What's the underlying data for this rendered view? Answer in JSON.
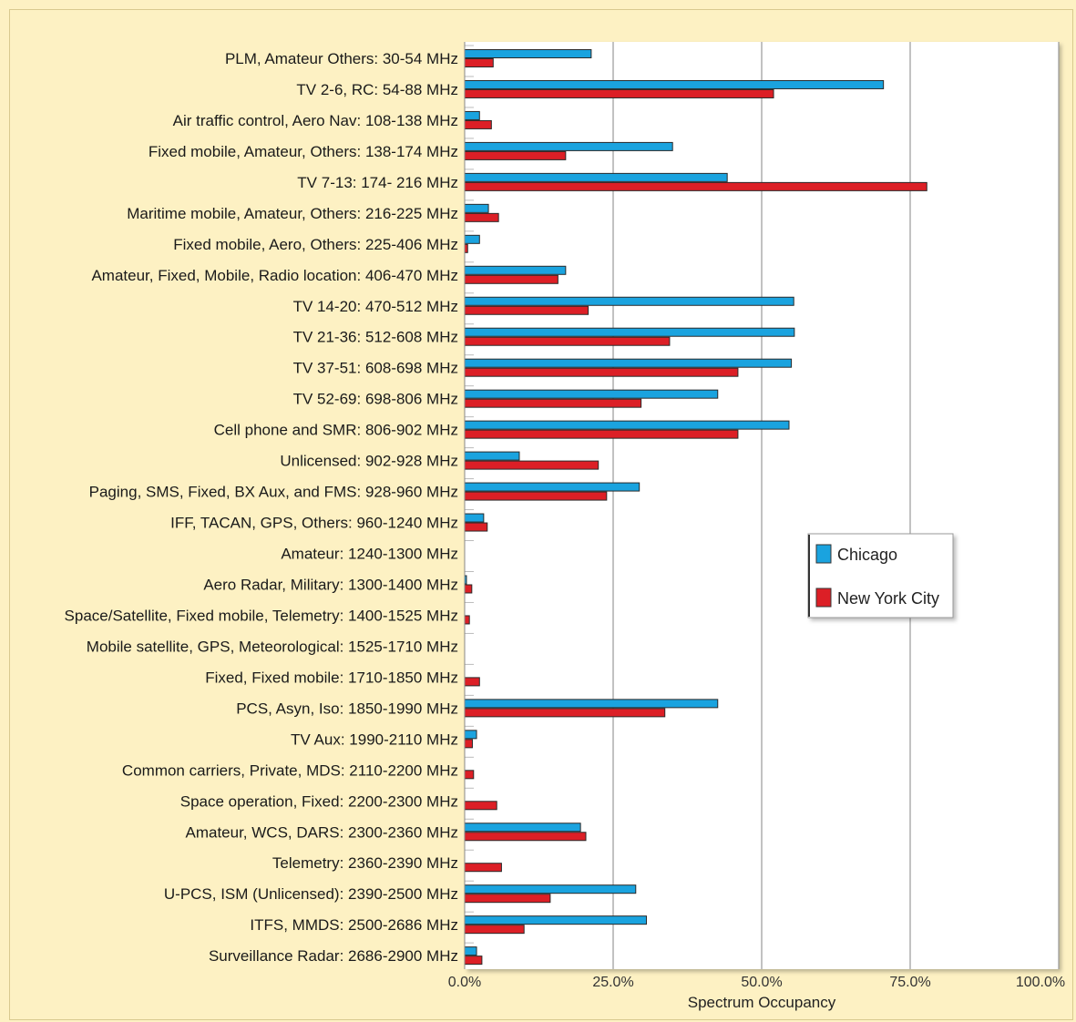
{
  "chart_data": {
    "type": "bar",
    "orientation": "horizontal",
    "categories": [
      "PLM, Amateur Others: 30-54 MHz",
      "TV 2-6, RC: 54-88 MHz",
      "Air traffic control, Aero Nav: 108-138 MHz",
      "Fixed mobile, Amateur, Others: 138-174 MHz",
      "TV 7-13: 174- 216 MHz",
      "Maritime mobile, Amateur, Others: 216-225 MHz",
      "Fixed mobile, Aero, Others: 225-406 MHz",
      "Amateur, Fixed, Mobile, Radio location: 406-470 MHz",
      "TV 14-20: 470-512 MHz",
      "TV 21-36: 512-608 MHz",
      "TV 37-51: 608-698 MHz",
      "TV 52-69: 698-806 MHz",
      "Cell phone and SMR: 806-902 MHz",
      "Unlicensed: 902-928 MHz",
      "Paging, SMS, Fixed, BX Aux, and FMS: 928-960 MHz",
      "IFF, TACAN, GPS, Others: 960-1240 MHz",
      "Amateur: 1240-1300 MHz",
      "Aero Radar, Military: 1300-1400 MHz",
      "Space/Satellite, Fixed mobile, Telemetry: 1400-1525 MHz",
      "Mobile satellite, GPS, Meteorological: 1525-1710 MHz",
      "Fixed, Fixed mobile: 1710-1850 MHz",
      "PCS, Asyn, Iso: 1850-1990 MHz",
      "TV Aux: 1990-2110 MHz",
      "Common carriers, Private, MDS: 2110-2200 MHz",
      "Space operation, Fixed: 2200-2300 MHz",
      "Amateur, WCS, DARS: 2300-2360 MHz",
      "Telemetry: 2360-2390 MHz",
      "U-PCS, ISM (Unlicensed): 2390-2500 MHz",
      "ITFS, MMDS: 2500-2686 MHz",
      "Surveillance Radar: 2686-2900 MHz"
    ],
    "series": [
      {
        "name": "Chicago",
        "color": "#1aa3df",
        "values": [
          21.3,
          70.5,
          2.5,
          35.0,
          44.2,
          4.0,
          2.5,
          17.0,
          55.4,
          55.5,
          55.0,
          42.6,
          54.6,
          9.2,
          29.4,
          3.2,
          0.0,
          0.3,
          0.0,
          0.0,
          0.0,
          42.6,
          2.0,
          0.0,
          0.0,
          19.5,
          0.0,
          28.8,
          30.6,
          2.0
        ]
      },
      {
        "name": "New York City",
        "color": "#dc1f26",
        "values": [
          4.8,
          52.0,
          4.5,
          17.0,
          77.8,
          5.7,
          0.5,
          15.7,
          20.8,
          34.5,
          46.0,
          29.7,
          46.0,
          22.5,
          23.9,
          3.8,
          0.0,
          1.2,
          0.8,
          0.0,
          2.5,
          33.7,
          1.3,
          1.5,
          5.4,
          20.4,
          6.2,
          14.4,
          10.0,
          2.9
        ]
      }
    ],
    "xlabel": "Spectrum Occupancy",
    "xlim": [
      0,
      100
    ],
    "xticks": [
      "0.0%",
      "25.0%",
      "50.0%",
      "75.0%",
      "100.0%"
    ],
    "grid": true,
    "legend_position": "right"
  }
}
